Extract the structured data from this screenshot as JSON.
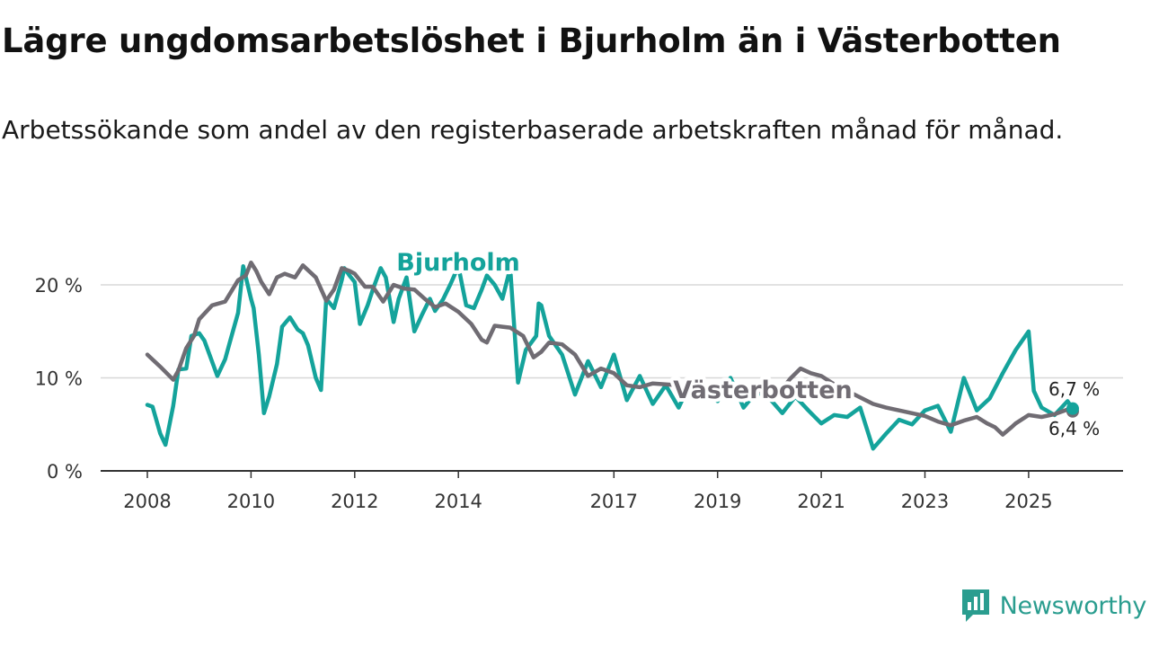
{
  "title": "Lägre ungdomsarbetslöshet i Bjurholm än i Västerbotten",
  "subtitle": "Arbetssökande som andel av den registerbaserade arbetskraften månad för månad.",
  "brand": {
    "name": "Newsworthy",
    "color": "#2a9d8f",
    "icon": "newsworthy-logo-icon"
  },
  "chart_data": {
    "type": "line",
    "title": "Lägre ungdomsarbetslöshet i Bjurholm än i Västerbotten",
    "xlabel": "",
    "ylabel": "",
    "xlim": [
      2008,
      2026
    ],
    "ylim": [
      0,
      22
    ],
    "yticks": [
      0,
      10,
      20
    ],
    "ytick_labels": [
      "0 %",
      "10 %",
      "20 %"
    ],
    "xticks": [
      2008,
      2010,
      2012,
      2014,
      2017,
      2019,
      2021,
      2023,
      2025
    ],
    "xtick_labels": [
      "2008",
      "2010",
      "2012",
      "2014",
      "2017",
      "2019",
      "2021",
      "2023",
      "2025"
    ],
    "grid": true,
    "series": [
      {
        "name": "Västerbotten",
        "color": "#706c73",
        "end_label": "6,4 %",
        "x": [
          2008.0,
          2008.25,
          2008.5,
          2008.6,
          2008.75,
          2008.9,
          2009.0,
          2009.25,
          2009.5,
          2009.75,
          2009.9,
          2010.0,
          2010.1,
          2010.2,
          2010.35,
          2010.5,
          2010.65,
          2010.85,
          2011.0,
          2011.25,
          2011.45,
          2011.6,
          2011.75,
          2011.9,
          2012.0,
          2012.2,
          2012.35,
          2012.55,
          2012.75,
          2012.95,
          2013.15,
          2013.35,
          2013.55,
          2013.75,
          2014.0,
          2014.25,
          2014.45,
          2014.55,
          2014.7,
          2014.85,
          2015.0,
          2015.25,
          2015.45,
          2015.6,
          2015.75,
          2016.0,
          2016.25,
          2016.5,
          2016.75,
          2017.0,
          2017.25,
          2017.5,
          2017.75,
          2018.0,
          2018.25,
          2018.5,
          2018.75,
          2019.0,
          2019.25,
          2019.5,
          2019.75,
          2020.0,
          2020.2,
          2020.4,
          2020.6,
          2020.8,
          2021.0,
          2021.25,
          2021.5,
          2021.75,
          2022.0,
          2022.25,
          2022.5,
          2022.75,
          2023.0,
          2023.25,
          2023.5,
          2023.75,
          2024.0,
          2024.2,
          2024.35,
          2024.5,
          2024.65,
          2024.75,
          2025.0,
          2025.25,
          2025.5,
          2025.75,
          2025.85
        ],
        "values": [
          12.5,
          11.2,
          9.8,
          10.8,
          13.2,
          14.5,
          16.3,
          17.8,
          18.2,
          20.5,
          21.0,
          22.4,
          21.5,
          20.3,
          19.0,
          20.8,
          21.2,
          20.8,
          22.1,
          20.8,
          18.3,
          19.5,
          21.8,
          21.5,
          21.2,
          19.8,
          19.8,
          18.2,
          20.0,
          19.6,
          19.5,
          18.5,
          17.6,
          18.0,
          17.1,
          15.8,
          14.1,
          13.8,
          15.6,
          15.5,
          15.4,
          14.5,
          12.2,
          12.8,
          13.8,
          13.6,
          12.5,
          10.2,
          11.0,
          10.5,
          9.2,
          9.0,
          9.4,
          9.3,
          9.2,
          8.8,
          9.0,
          9.3,
          9.1,
          8.9,
          8.6,
          8.3,
          8.5,
          9.9,
          11.0,
          10.5,
          10.2,
          9.3,
          8.6,
          7.9,
          7.2,
          6.8,
          6.5,
          6.2,
          5.9,
          5.3,
          4.9,
          5.4,
          5.8,
          5.1,
          4.7,
          3.9,
          4.6,
          5.1,
          6.0,
          5.8,
          6.1,
          6.6,
          6.4
        ]
      },
      {
        "name": "Bjurholm",
        "color": "#14a39b",
        "end_label": "6,7 %",
        "x": [
          2008.0,
          2008.1,
          2008.25,
          2008.35,
          2008.5,
          2008.6,
          2008.75,
          2008.85,
          2009.0,
          2009.1,
          2009.2,
          2009.35,
          2009.5,
          2009.6,
          2009.75,
          2009.85,
          2010.0,
          2010.05,
          2010.15,
          2010.25,
          2010.35,
          2010.5,
          2010.6,
          2010.75,
          2010.9,
          2011.0,
          2011.1,
          2011.25,
          2011.35,
          2011.45,
          2011.6,
          2011.75,
          2011.8,
          2011.9,
          2012.0,
          2012.1,
          2012.25,
          2012.35,
          2012.5,
          2012.6,
          2012.75,
          2012.85,
          2013.0,
          2013.15,
          2013.3,
          2013.45,
          2013.55,
          2013.7,
          2013.85,
          2014.0,
          2014.15,
          2014.3,
          2014.45,
          2014.55,
          2014.7,
          2014.85,
          2015.0,
          2015.15,
          2015.3,
          2015.5,
          2015.55,
          2015.6,
          2015.75,
          2016.0,
          2016.25,
          2016.5,
          2016.75,
          2017.0,
          2017.25,
          2017.5,
          2017.75,
          2018.0,
          2018.25,
          2018.5,
          2018.75,
          2019.0,
          2019.25,
          2019.5,
          2019.75,
          2020.0,
          2020.25,
          2020.5,
          2020.75,
          2021.0,
          2021.25,
          2021.5,
          2021.75,
          2022.0,
          2022.25,
          2022.5,
          2022.75,
          2023.0,
          2023.25,
          2023.5,
          2023.75,
          2024.0,
          2024.25,
          2024.5,
          2024.75,
          2025.0,
          2025.1,
          2025.25,
          2025.5,
          2025.75,
          2025.85
        ],
        "values": [
          7.1,
          6.9,
          4.0,
          2.8,
          7.0,
          10.9,
          11.0,
          14.5,
          14.8,
          14.0,
          12.5,
          10.2,
          12.0,
          14.0,
          17.0,
          22.0,
          18.5,
          17.5,
          12.5,
          6.2,
          8.0,
          11.5,
          15.5,
          16.5,
          15.2,
          14.8,
          13.5,
          10.0,
          8.7,
          18.5,
          17.5,
          20.5,
          21.8,
          21.0,
          20.3,
          15.8,
          17.8,
          19.5,
          21.8,
          20.8,
          16.0,
          18.5,
          20.8,
          15.0,
          16.8,
          18.5,
          17.2,
          18.4,
          20.1,
          22.0,
          17.8,
          17.5,
          19.5,
          21.0,
          20.0,
          18.5,
          21.8,
          9.5,
          13.0,
          14.5,
          18.0,
          17.8,
          14.5,
          12.5,
          8.2,
          11.8,
          9.0,
          12.5,
          7.6,
          10.2,
          7.2,
          9.2,
          6.8,
          9.8,
          8.5,
          7.5,
          10.0,
          6.8,
          8.5,
          7.8,
          6.2,
          8.0,
          6.5,
          5.1,
          6.0,
          5.8,
          6.8,
          2.4,
          4.0,
          5.5,
          5.0,
          6.5,
          7.0,
          4.2,
          10.0,
          6.5,
          7.8,
          10.5,
          13.0,
          15.0,
          8.6,
          6.8,
          6.0,
          7.5,
          6.7
        ]
      }
    ]
  }
}
